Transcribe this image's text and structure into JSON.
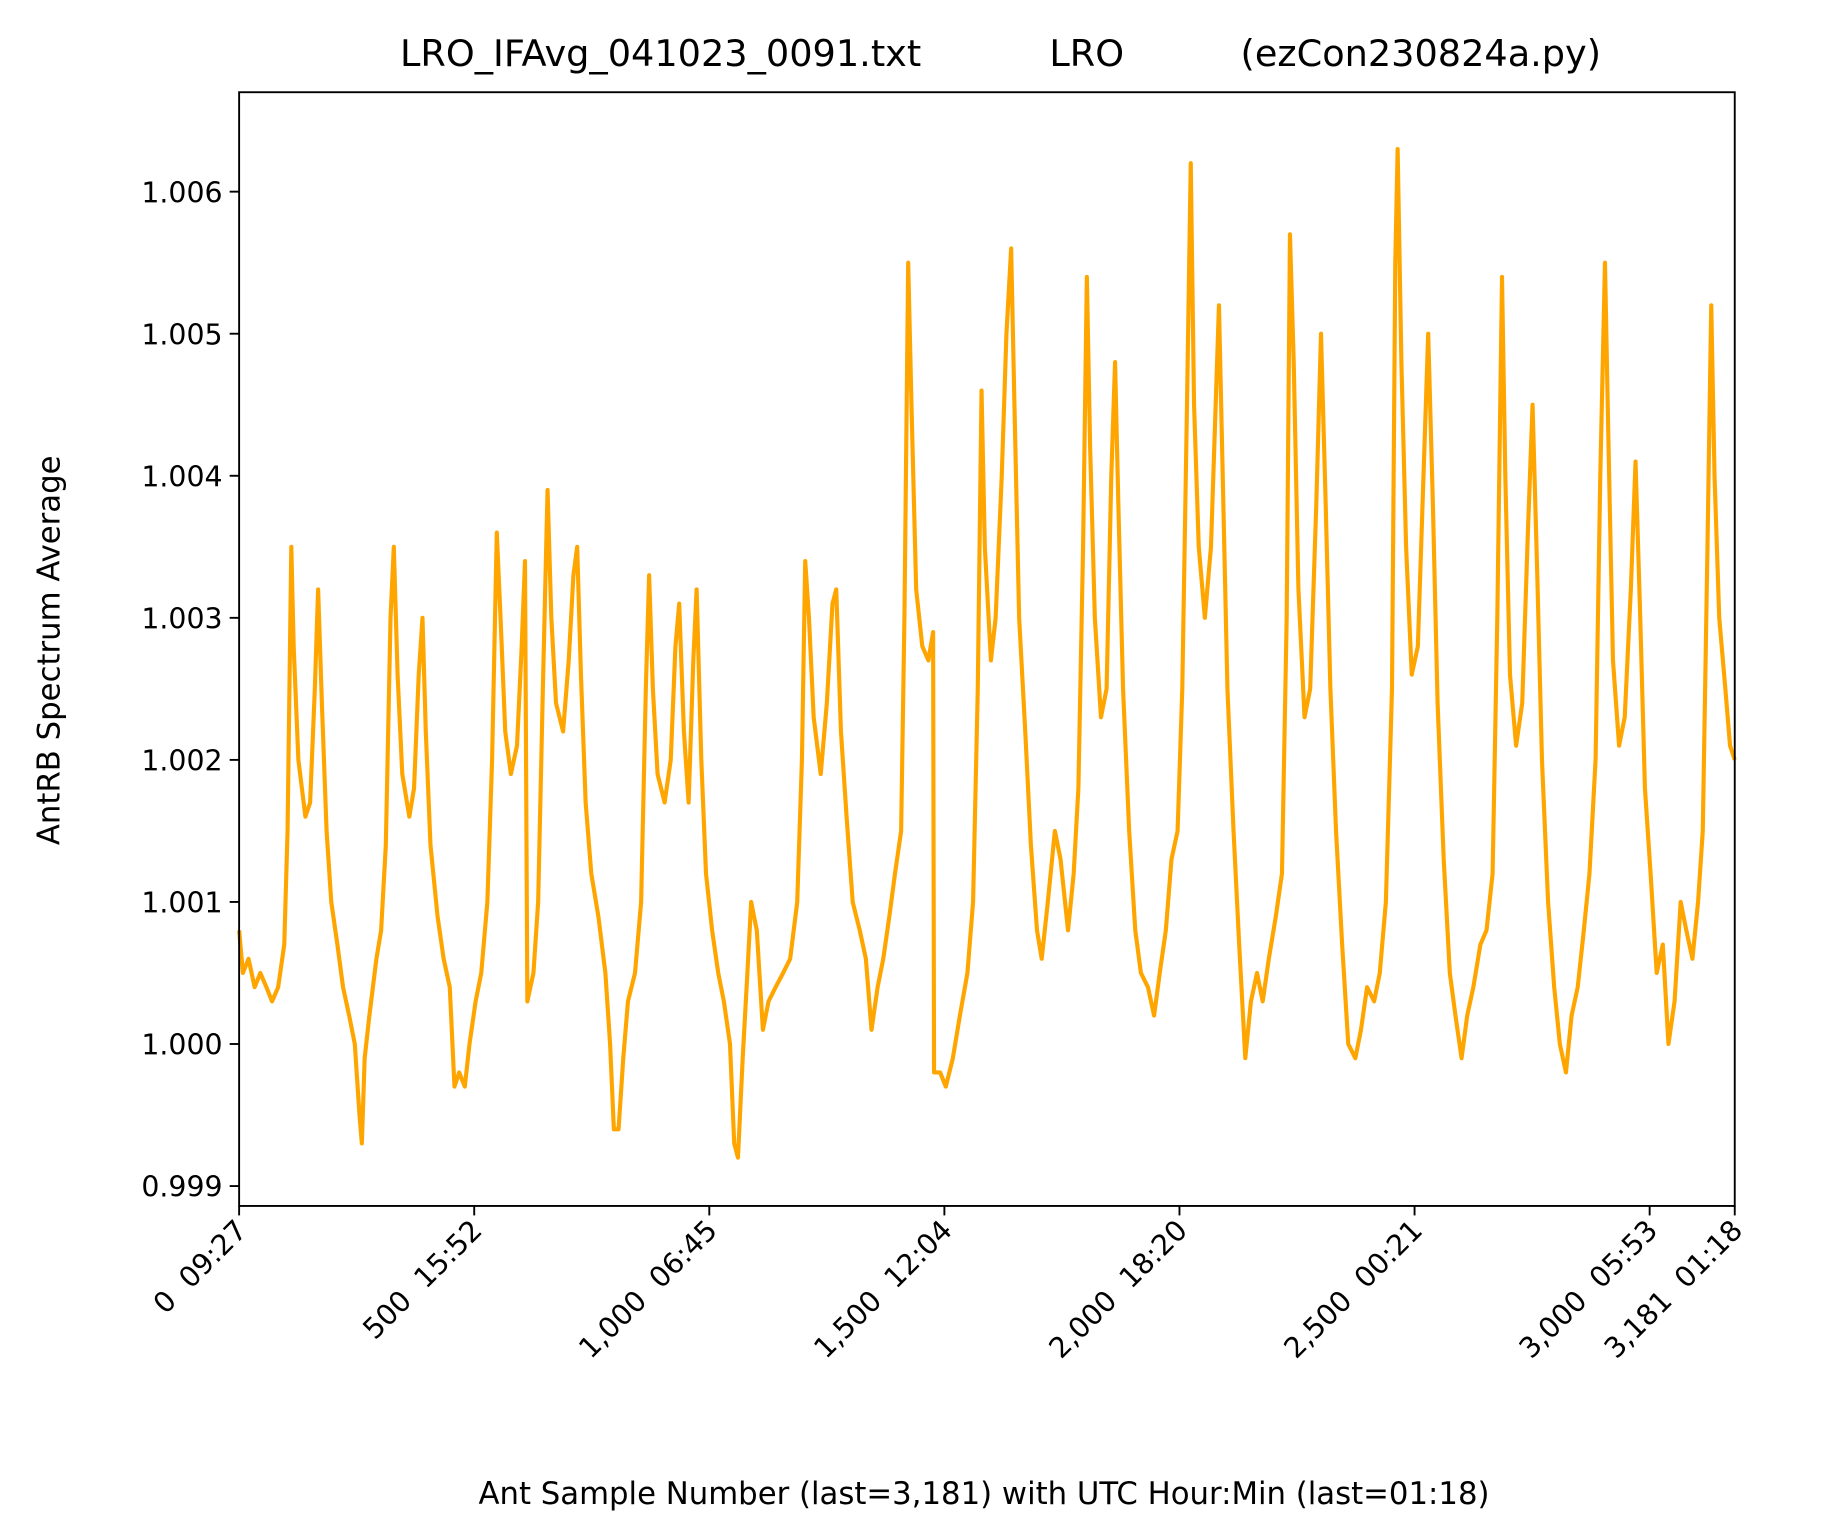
{
  "chart_data": {
    "type": "line",
    "title": "LRO_IFAvg_041023_0091.txt           LRO          (ezCon230824a.py)",
    "xlabel": "Ant Sample Number (last=3,181) with UTC Hour:Min (last=01:18)",
    "ylabel": "AntRB Spectrum Average",
    "color": "#ffa500",
    "xlim": [
      0,
      3181
    ],
    "ylim": [
      0.99886,
      1.0067
    ],
    "xticks": [
      {
        "value": 0,
        "label": "0  09:27"
      },
      {
        "value": 500,
        "label": "500  15:52"
      },
      {
        "value": 1000,
        "label": "1,000  06:45"
      },
      {
        "value": 1500,
        "label": "1,500  12:04"
      },
      {
        "value": 2000,
        "label": "2,000  18:20"
      },
      {
        "value": 2500,
        "label": "2,500  00:21"
      },
      {
        "value": 3000,
        "label": "3,000  05:53"
      },
      {
        "value": 3181,
        "label": "3,181  01:18"
      }
    ],
    "yticks": [
      0.999,
      {
        "value": 1,
        "label": "1.000"
      },
      1.001,
      1.002,
      1.003,
      1.004,
      1.005,
      1.006
    ],
    "x": [
      0,
      8,
      20,
      33,
      45,
      58,
      70,
      83,
      96,
      103,
      111,
      116,
      126,
      141,
      151,
      161,
      168,
      176,
      186,
      196,
      209,
      221,
      234,
      246,
      256,
      261,
      267,
      277,
      292,
      302,
      312,
      322,
      329,
      337,
      347,
      362,
      372,
      382,
      390,
      397,
      407,
      422,
      435,
      448,
      458,
      468,
      480,
      490,
      503,
      515,
      528,
      538,
      548,
      556,
      566,
      578,
      591,
      601,
      608,
      613,
      626,
      636,
      646,
      656,
      664,
      674,
      689,
      701,
      711,
      719,
      727,
      737,
      749,
      764,
      779,
      789,
      797,
      807,
      817,
      827,
      842,
      855,
      865,
      872,
      880,
      890,
      905,
      918,
      928,
      936,
      946,
      956,
      966,
      973,
      983,
      993,
      1006,
      1019,
      1031,
      1044,
      1053,
      1061,
      1071,
      1081,
      1089,
      1101,
      1114,
      1126,
      1141,
      1157,
      1172,
      1187,
      1197,
      1204,
      1212,
      1222,
      1237,
      1250,
      1262,
      1270,
      1280,
      1292,
      1305,
      1320,
      1333,
      1345,
      1358,
      1370,
      1383,
      1395,
      1408,
      1415,
      1423,
      1430,
      1440,
      1453,
      1466,
      1476,
      1478,
      1491,
      1503,
      1518,
      1533,
      1549,
      1561,
      1571,
      1579,
      1586,
      1599,
      1609,
      1622,
      1632,
      1642,
      1649,
      1659,
      1672,
      1684,
      1697,
      1707,
      1720,
      1735,
      1747,
      1763,
      1775,
      1785,
      1795,
      1803,
      1810,
      1820,
      1833,
      1845,
      1855,
      1863,
      1870,
      1880,
      1893,
      1906,
      1918,
      1933,
      1946,
      1958,
      1971,
      1983,
      1996,
      2006,
      2016,
      2024,
      2031,
      2041,
      2054,
      2067,
      2077,
      2084,
      2092,
      2102,
      2115,
      2127,
      2140,
      2152,
      2165,
      2177,
      2190,
      2205,
      2218,
      2228,
      2235,
      2243,
      2253,
      2266,
      2278,
      2291,
      2301,
      2311,
      2321,
      2333,
      2346,
      2359,
      2374,
      2386,
      2399,
      2414,
      2426,
      2439,
      2452,
      2459,
      2464,
      2472,
      2482,
      2494,
      2507,
      2519,
      2529,
      2539,
      2549,
      2562,
      2575,
      2587,
      2600,
      2612,
      2625,
      2640,
      2653,
      2666,
      2676,
      2686,
      2693,
      2703,
      2716,
      2729,
      2741,
      2751,
      2761,
      2771,
      2784,
      2797,
      2809,
      2822,
      2834,
      2847,
      2860,
      2872,
      2885,
      2895,
      2905,
      2912,
      2922,
      2935,
      2947,
      2960,
      2970,
      2980,
      2990,
      3002,
      3015,
      3028,
      3040,
      3053,
      3066,
      3078,
      3091,
      3103,
      3113,
      3123,
      3131,
      3138,
      3148,
      3161,
      3171,
      3181
    ],
    "values": [
      1.0008,
      1.0005,
      1.0006,
      1.0004,
      1.0005,
      1.0004,
      1.0003,
      1.0004,
      1.0007,
      1.0015,
      1.0035,
      1.0028,
      1.002,
      1.0016,
      1.0017,
      1.0025,
      1.0032,
      1.0024,
      1.0015,
      1.001,
      1.0007,
      1.0004,
      1.0002,
      1.0,
      0.9995,
      0.9993,
      0.9999,
      1.0002,
      1.0006,
      1.0008,
      1.0014,
      1.003,
      1.0035,
      1.0026,
      1.0019,
      1.0016,
      1.0018,
      1.0026,
      1.003,
      1.0022,
      1.0014,
      1.0009,
      1.0006,
      1.0004,
      0.9997,
      0.9998,
      0.9997,
      1.0,
      1.0003,
      1.0005,
      1.001,
      1.002,
      1.0036,
      1.003,
      1.0022,
      1.0019,
      1.0021,
      1.0028,
      1.0034,
      1.0003,
      1.0005,
      1.001,
      1.0025,
      1.0039,
      1.003,
      1.0024,
      1.0022,
      1.0027,
      1.0033,
      1.0035,
      1.0026,
      1.0017,
      1.0012,
      1.0009,
      1.0005,
      1.0,
      0.9994,
      0.9994,
      0.9999,
      1.0003,
      1.0005,
      1.001,
      1.0025,
      1.0033,
      1.0025,
      1.0019,
      1.0017,
      1.002,
      1.0028,
      1.0031,
      1.0022,
      1.0017,
      1.0027,
      1.0032,
      1.002,
      1.0012,
      1.0008,
      1.0005,
      1.0003,
      1.0,
      0.9993,
      0.9992,
      0.9999,
      1.0005,
      1.001,
      1.0008,
      1.0001,
      1.0003,
      1.0004,
      1.0005,
      1.0006,
      1.001,
      1.002,
      1.0034,
      1.003,
      1.0023,
      1.0019,
      1.0024,
      1.0031,
      1.0032,
      1.0022,
      1.0016,
      1.001,
      1.0008,
      1.0006,
      1.0001,
      1.0004,
      1.0006,
      1.0009,
      1.0012,
      1.0015,
      1.003,
      1.0055,
      1.0045,
      1.0032,
      1.0028,
      1.0027,
      1.0029,
      0.9998,
      0.9998,
      0.9997,
      0.9999,
      1.0002,
      1.0005,
      1.001,
      1.0025,
      1.0046,
      1.0035,
      1.0027,
      1.003,
      1.004,
      1.005,
      1.0056,
      1.0045,
      1.003,
      1.0022,
      1.0014,
      1.0008,
      1.0006,
      1.001,
      1.0015,
      1.0013,
      1.0008,
      1.0012,
      1.0018,
      1.0035,
      1.0054,
      1.0042,
      1.003,
      1.0023,
      1.0025,
      1.004,
      1.0048,
      1.0038,
      1.0025,
      1.0015,
      1.0008,
      1.0005,
      1.0004,
      1.0002,
      1.0005,
      1.0008,
      1.0013,
      1.0015,
      1.0025,
      1.0045,
      1.0062,
      1.0045,
      1.0035,
      1.003,
      1.0035,
      1.0045,
      1.0052,
      1.004,
      1.0025,
      1.0015,
      1.0007,
      0.9999,
      1.0003,
      1.0005,
      1.0003,
      1.0006,
      1.0009,
      1.0012,
      1.003,
      1.0057,
      1.0048,
      1.0032,
      1.0023,
      1.0025,
      1.0038,
      1.005,
      1.0038,
      1.0025,
      1.0015,
      1.0007,
      1.0,
      0.9999,
      1.0001,
      1.0004,
      1.0003,
      1.0005,
      1.001,
      1.0025,
      1.0055,
      1.0063,
      1.0048,
      1.0035,
      1.0026,
      1.0028,
      1.004,
      1.005,
      1.0038,
      1.0024,
      1.0013,
      1.0005,
      1.0002,
      0.9999,
      1.0002,
      1.0004,
      1.0007,
      1.0008,
      1.0012,
      1.003,
      1.0054,
      1.004,
      1.0026,
      1.0021,
      1.0024,
      1.0036,
      1.0045,
      1.0033,
      1.002,
      1.001,
      1.0004,
      1.0,
      0.9998,
      1.0002,
      1.0004,
      1.0008,
      1.0012,
      1.002,
      1.004,
      1.0055,
      1.0043,
      1.0027,
      1.0021,
      1.0023,
      1.0032,
      1.0041,
      1.003,
      1.0018,
      1.0012,
      1.0005,
      1.0007,
      1.0,
      1.0003,
      1.001,
      1.0008,
      1.0006,
      1.001,
      1.0015,
      1.0035,
      1.0052,
      1.004,
      1.003,
      1.0025,
      1.0021,
      1.002
    ]
  }
}
